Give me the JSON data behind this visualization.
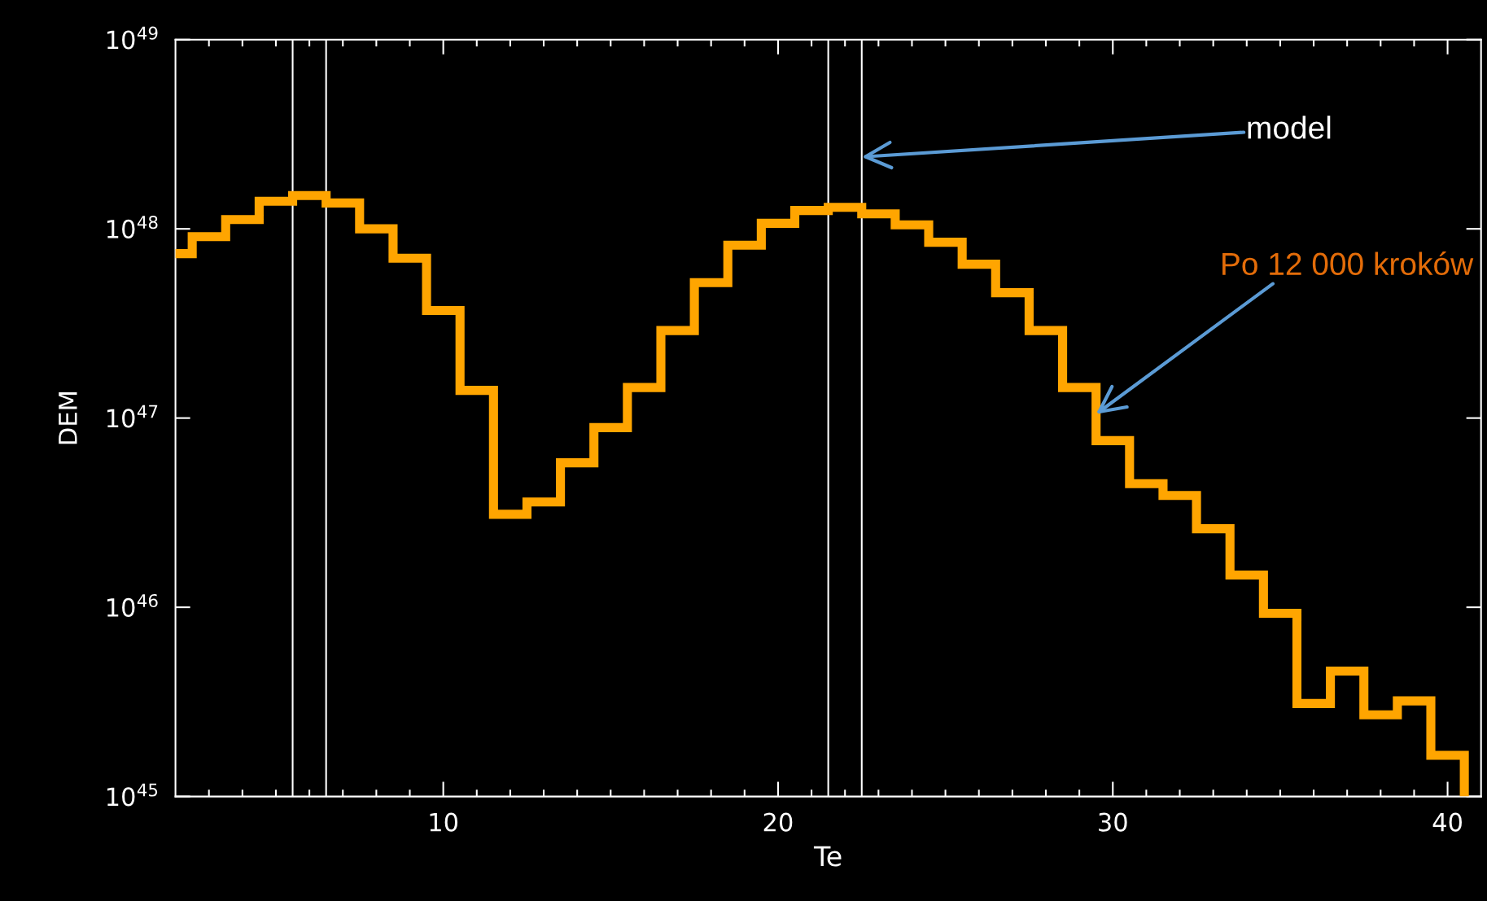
{
  "chart_data": {
    "type": "histogram",
    "xlabel": "Te",
    "ylabel": "DEM",
    "bins": [
      1.5,
      2.5,
      3.5,
      4.5,
      5.5,
      6.5,
      7.5,
      8.5,
      9.5,
      10.5,
      11.5,
      12.5,
      13.5,
      14.5,
      15.5,
      16.5,
      17.5,
      18.5,
      19.5,
      20.5,
      21.5,
      22.5,
      23.5,
      24.5,
      25.5,
      26.5,
      27.5,
      28.5,
      29.5,
      30.5,
      31.5,
      32.5,
      33.5,
      34.5,
      35.5,
      36.5,
      37.5,
      38.5,
      39.5,
      40.5
    ],
    "values": [
      7.4e+47,
      9.1e+47,
      1.12e+48,
      1.4e+48,
      1.5e+48,
      1.37e+48,
      1e+48,
      7e+47,
      3.7e+47,
      1.4e+47,
      3.1e+46,
      3.6e+46,
      5.8e+46,
      8.9e+46,
      1.45e+47,
      2.9e+47,
      5.2e+47,
      8.2e+47,
      1.07e+48,
      1.25e+48,
      1.3e+48,
      1.2e+48,
      1.05e+48,
      8.5e+47,
      6.5e+47,
      4.6e+47,
      2.9e+47,
      1.45e+47,
      7.6e+46,
      4.5e+46,
      3.9e+46,
      2.6e+46,
      1.48e+46,
      9.3e+45,
      3.1e+45,
      4.6e+45,
      2.7e+45,
      3.2e+45,
      1.65e+45
    ],
    "color": "#ffa500",
    "log": "y",
    "xlim": [
      2,
      41
    ],
    "ylim": [
      1e+45,
      1e+49
    ],
    "xticks": [
      {
        "value": 3,
        "label": null
      },
      {
        "value": 4,
        "label": null
      },
      {
        "value": 5,
        "label": null
      },
      {
        "value": 6,
        "label": null
      },
      {
        "value": 7,
        "label": null
      },
      {
        "value": 8,
        "label": null
      },
      {
        "value": 9,
        "label": null
      },
      10,
      {
        "value": 11,
        "label": null
      },
      {
        "value": 12,
        "label": null
      },
      {
        "value": 13,
        "label": null
      },
      {
        "value": 14,
        "label": null
      },
      {
        "value": 15,
        "label": null
      },
      {
        "value": 16,
        "label": null
      },
      {
        "value": 17,
        "label": null
      },
      {
        "value": 18,
        "label": null
      },
      {
        "value": 19,
        "label": null
      },
      20,
      {
        "value": 21,
        "label": null
      },
      {
        "value": 22,
        "label": null
      },
      {
        "value": 23,
        "label": null
      },
      {
        "value": 24,
        "label": null
      },
      {
        "value": 25,
        "label": null
      },
      {
        "value": 26,
        "label": null
      },
      {
        "value": 27,
        "label": null
      },
      {
        "value": 28,
        "label": null
      },
      {
        "value": 29,
        "label": null
      },
      30,
      {
        "value": 31,
        "label": null
      },
      {
        "value": 32,
        "label": null
      },
      {
        "value": 33,
        "label": null
      },
      {
        "value": 34,
        "label": null
      },
      {
        "value": 35,
        "label": null
      },
      {
        "value": 36,
        "label": null
      },
      {
        "value": 37,
        "label": null
      },
      {
        "value": 38,
        "label": null
      },
      {
        "value": 39,
        "label": null
      },
      40
    ],
    "yticks": [
      {
        "value": 1e+45,
        "label": "10$^{45}$"
      },
      {
        "value": 1e+46,
        "label": "10$^{46}$"
      },
      {
        "value": 1e+47,
        "label": "10$^{47}$"
      },
      {
        "value": 1e+48,
        "label": "10$^{48}$"
      },
      {
        "value": 1e+49,
        "label": "10$^{49}$"
      }
    ],
    "ref_lines": [
      {
        "axis": "x",
        "value": 5.5,
        "color": "#ffffff"
      },
      {
        "axis": "x",
        "value": 6.5,
        "color": "#ffffff"
      },
      {
        "axis": "x",
        "value": 21.5,
        "color": "#ffffff"
      },
      {
        "axis": "x",
        "value": 22.5,
        "color": "#ffffff"
      }
    ],
    "annotations": [
      {
        "text": "model",
        "x": 22.5,
        "y": 2.4e+48
      },
      {
        "text": "Po 12 000 kroków",
        "x": 29.5,
        "y": 1.05e+47
      }
    ],
    "grid": false
  }
}
